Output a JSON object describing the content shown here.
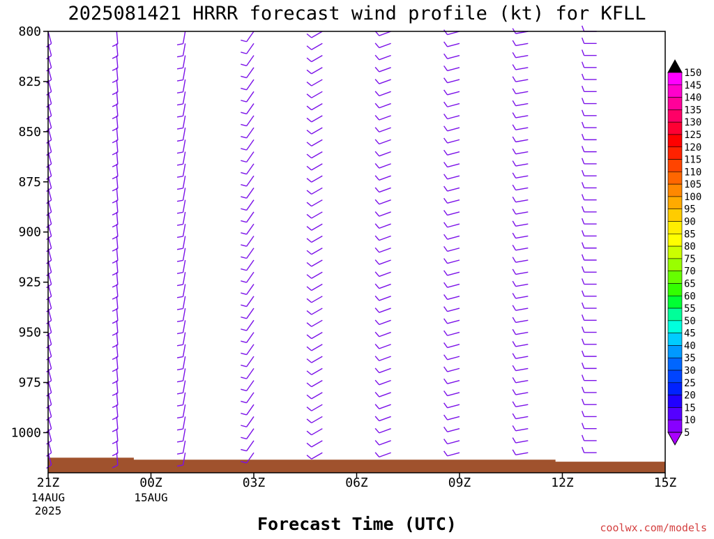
{
  "chart_data": {
    "type": "wind-barb",
    "title": "2025081421 HRRR forecast wind profile (kt) for KFLL",
    "xlabel": "Forecast Time (UTC)",
    "credit": "coolwx.com/models",
    "credit_color": "#d44040",
    "barb_color": "#7a10e8",
    "terrain_color": "#a0522d",
    "y_axis": {
      "scale": "linear",
      "inverted": true,
      "ylim": [
        800,
        1020
      ],
      "ticks": [
        800,
        825,
        850,
        875,
        900,
        925,
        950,
        975,
        1000
      ]
    },
    "x_axis": {
      "xlim": [
        0,
        18
      ],
      "ticks": [
        {
          "x": 0,
          "label": "21Z",
          "date": "14AUG",
          "year": "2025"
        },
        {
          "x": 3,
          "label": "00Z",
          "date": "15AUG",
          "year": ""
        },
        {
          "x": 6,
          "label": "03Z",
          "date": "",
          "year": ""
        },
        {
          "x": 9,
          "label": "06Z",
          "date": "",
          "year": ""
        },
        {
          "x": 12,
          "label": "09Z",
          "date": "",
          "year": ""
        },
        {
          "x": 15,
          "label": "12Z",
          "date": "",
          "year": ""
        },
        {
          "x": 18,
          "label": "15Z",
          "date": "",
          "year": ""
        }
      ]
    },
    "surface_pressure": [
      {
        "x": 0,
        "p": 1012.5
      },
      {
        "x": 2.5,
        "p": 1012.5
      },
      {
        "x": 2.5,
        "p": 1013.5
      },
      {
        "x": 14.8,
        "p": 1013.5
      },
      {
        "x": 14.8,
        "p": 1014.5
      },
      {
        "x": 18,
        "p": 1014.5
      }
    ],
    "barb_columns": [
      {
        "x": 0,
        "dir": 165,
        "speed": 10,
        "top": 800
      },
      {
        "x": 2.0,
        "dir": 175,
        "speed": 10,
        "top": 800
      },
      {
        "x": 4.0,
        "dir": 190,
        "speed": 10,
        "top": 800
      },
      {
        "x": 6.0,
        "dir": 215,
        "speed": 10,
        "top": 800
      },
      {
        "x": 8.0,
        "dir": 240,
        "speed": 10,
        "top": 800
      },
      {
        "x": 10.0,
        "dir": 250,
        "speed": 10,
        "top": 800
      },
      {
        "x": 12.0,
        "dir": 255,
        "speed": 10,
        "top": 800
      },
      {
        "x": 14.0,
        "dir": 260,
        "speed": 10,
        "top": 800
      },
      {
        "x": 16.0,
        "dir": 270,
        "speed": 10,
        "top": 800
      }
    ],
    "colorbar": {
      "labels": [
        150,
        145,
        140,
        135,
        130,
        125,
        120,
        115,
        110,
        105,
        100,
        95,
        90,
        85,
        80,
        75,
        70,
        65,
        60,
        55,
        50,
        45,
        40,
        35,
        30,
        25,
        20,
        15,
        10,
        5
      ],
      "colors": [
        "#000000",
        "#ff00ff",
        "#ff00cc",
        "#ff0099",
        "#ff0066",
        "#ff0033",
        "#ff0000",
        "#ff2200",
        "#ff4400",
        "#ff6600",
        "#ff8800",
        "#ffaa00",
        "#ffcc00",
        "#ffee00",
        "#ffff00",
        "#ccff00",
        "#99ff00",
        "#66ff00",
        "#33ff00",
        "#00ff33",
        "#00ff99",
        "#00ffdd",
        "#00ccff",
        "#0099ff",
        "#0066ff",
        "#0044ff",
        "#0022ff",
        "#2200ff",
        "#5500ff",
        "#8800ff",
        "#aa00ff"
      ]
    }
  }
}
